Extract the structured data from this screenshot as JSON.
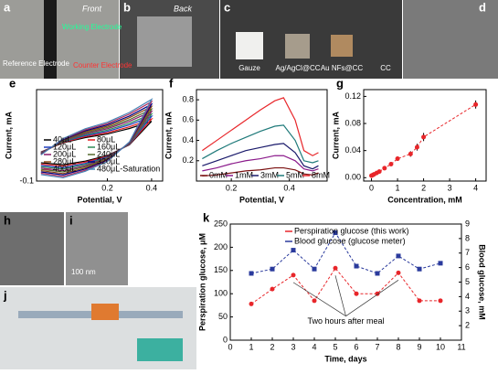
{
  "photos": [
    {
      "label": "a",
      "texts": [
        "Front",
        "Working Electrode",
        "Reference Electrode",
        "Counter Electrode"
      ]
    },
    {
      "label": "b",
      "texts": [
        "Back"
      ]
    },
    {
      "label": "c",
      "texts": [
        "Gauze",
        "Ag/AgCl@CC",
        "Au NFs@CC",
        "CC"
      ]
    },
    {
      "label": "d",
      "texts": []
    },
    {
      "label": "h",
      "texts": []
    },
    {
      "label": "i",
      "texts": [
        "100 nm"
      ]
    },
    {
      "label": "j",
      "texts": []
    }
  ],
  "chart_data": [
    {
      "type": "line",
      "label": "e",
      "xlabel": "Potential, V",
      "ylabel": "Current, mA",
      "x": [
        -0.1,
        0.0,
        0.1,
        0.2,
        0.3,
        0.4,
        0.3,
        0.2,
        0.1,
        0.0,
        -0.1
      ],
      "xlim": [
        -0.12,
        0.45
      ],
      "xticks": [
        0.2,
        0.4
      ],
      "ylim": [
        -0.1,
        0.18
      ],
      "yticks": [
        -0.1
      ],
      "legend": "lower-right",
      "series": [
        {
          "name": "40μL",
          "color": "#000000",
          "values": [
            -0.011,
            0.017,
            0.033,
            0.044,
            0.061,
            0.083,
            0.011,
            -0.022,
            -0.039,
            -0.05,
            -0.044
          ]
        },
        {
          "name": "80μL",
          "color": "#e41a1c",
          "values": [
            -0.012,
            0.018,
            0.036,
            0.048,
            0.066,
            0.09,
            0.012,
            -0.024,
            -0.042,
            -0.054,
            -0.048
          ]
        },
        {
          "name": "120μL",
          "color": "#1f3fbf",
          "values": [
            -0.013,
            0.02,
            0.039,
            0.052,
            0.072,
            0.098,
            0.013,
            -0.026,
            -0.046,
            -0.059,
            -0.052
          ]
        },
        {
          "name": "160μL",
          "color": "#2e8b57",
          "values": [
            -0.014,
            0.021,
            0.042,
            0.056,
            0.077,
            0.105,
            0.014,
            -0.028,
            -0.049,
            -0.063,
            -0.056
          ]
        },
        {
          "name": "200μL",
          "color": "#8b1a6b",
          "values": [
            -0.015,
            0.023,
            0.045,
            0.06,
            0.083,
            0.113,
            0.015,
            -0.03,
            -0.053,
            -0.068,
            -0.06
          ]
        },
        {
          "name": "240μL",
          "color": "#556b2f",
          "values": [
            -0.016,
            0.024,
            0.048,
            0.064,
            0.088,
            0.12,
            0.016,
            -0.032,
            -0.056,
            -0.072,
            -0.064
          ]
        },
        {
          "name": "280μL",
          "color": "#8b4513",
          "values": [
            -0.017,
            0.026,
            0.051,
            0.068,
            0.094,
            0.128,
            0.017,
            -0.034,
            -0.06,
            -0.077,
            -0.068
          ]
        },
        {
          "name": "320μL",
          "color": "#000080",
          "values": [
            -0.018,
            0.027,
            0.054,
            0.072,
            0.099,
            0.135,
            0.018,
            -0.036,
            -0.063,
            -0.081,
            -0.072
          ]
        },
        {
          "name": "400μL",
          "color": "#b03060",
          "values": [
            -0.019,
            0.029,
            0.057,
            0.076,
            0.105,
            0.143,
            0.019,
            -0.038,
            -0.067,
            -0.086,
            -0.076
          ]
        },
        {
          "name": "480μL-Saturation",
          "color": "#4682b4",
          "values": [
            -0.02,
            0.03,
            0.06,
            0.08,
            0.11,
            0.15,
            0.02,
            -0.04,
            -0.07,
            -0.09,
            -0.08
          ]
        }
      ]
    },
    {
      "type": "line",
      "label": "f",
      "xlabel": "Potential, V",
      "ylabel": "Current, mA",
      "x": [
        0.1,
        0.15,
        0.2,
        0.25,
        0.3,
        0.35,
        0.38,
        0.42,
        0.45,
        0.48,
        0.5
      ],
      "xlim": [
        0.08,
        0.53
      ],
      "xticks": [
        0.2,
        0.4
      ],
      "ylim": [
        0,
        0.9
      ],
      "yticks": [
        0.2,
        0.4,
        0.6,
        0.8
      ],
      "legend": "bottom",
      "series": [
        {
          "name": "0mM",
          "color": "#7a1010",
          "values": [
            0.05,
            0.06,
            0.08,
            0.1,
            0.11,
            0.13,
            0.13,
            0.11,
            0.07,
            0.06,
            0.08
          ]
        },
        {
          "name": "1mM",
          "color": "#8b1a8b",
          "values": [
            0.1,
            0.13,
            0.17,
            0.2,
            0.22,
            0.25,
            0.25,
            0.2,
            0.12,
            0.1,
            0.12
          ]
        },
        {
          "name": "3mM",
          "color": "#1a1a6b",
          "values": [
            0.15,
            0.2,
            0.25,
            0.3,
            0.33,
            0.36,
            0.37,
            0.28,
            0.15,
            0.12,
            0.15
          ]
        },
        {
          "name": "5mM",
          "color": "#1f7a7a",
          "values": [
            0.22,
            0.3,
            0.37,
            0.43,
            0.49,
            0.54,
            0.55,
            0.4,
            0.2,
            0.18,
            0.2
          ]
        },
        {
          "name": "8mM",
          "color": "#e8262a",
          "values": [
            0.3,
            0.4,
            0.5,
            0.6,
            0.7,
            0.79,
            0.82,
            0.6,
            0.3,
            0.25,
            0.28
          ]
        }
      ]
    },
    {
      "type": "scatter",
      "label": "g",
      "xlabel": "Concentration, mM",
      "ylabel": "Current, mA",
      "x": [
        0,
        0.05,
        0.1,
        0.2,
        0.3,
        0.5,
        0.75,
        1,
        1.5,
        1.75,
        2,
        4
      ],
      "xlim": [
        -0.3,
        4.4
      ],
      "xticks": [
        0,
        1,
        2,
        3,
        4
      ],
      "ylim": [
        -0.005,
        0.13
      ],
      "yticks": [
        {
          "value": 0,
          "label": "0.00"
        },
        0.04,
        0.08,
        0.12
      ],
      "series": [
        {
          "color": "#e8262a",
          "values": [
            0.003,
            0.004,
            0.005,
            0.007,
            0.009,
            0.014,
            0.02,
            0.028,
            0.035,
            0.045,
            0.06,
            0.108
          ],
          "errors": [
            0.001,
            0.001,
            0.001,
            0.001,
            0.002,
            0.002,
            0.003,
            0.003,
            0.004,
            0.005,
            0.006,
            0.006
          ]
        }
      ]
    },
    {
      "type": "line",
      "label": "k",
      "xlabel": "Time, days",
      "ylabel": "Perspiration glucose, μM",
      "y2label": "Blood glucose, mM",
      "x": [
        1,
        2,
        3,
        4,
        5,
        6,
        7,
        8,
        9,
        10
      ],
      "xlim": [
        0,
        11
      ],
      "xticks": [
        0,
        1,
        2,
        3,
        4,
        5,
        6,
        7,
        8,
        9,
        10,
        11
      ],
      "ylim": [
        0,
        250
      ],
      "yticks": [
        0,
        50,
        100,
        150,
        200,
        250
      ],
      "y2lim": [
        1,
        9
      ],
      "y2ticks": [
        2,
        3,
        4,
        5,
        6,
        7,
        8,
        9
      ],
      "legend": "top",
      "annotation": "Two hours after meal",
      "series": [
        {
          "name": "Perspiration glucose (this work)",
          "color": "#e8262a",
          "marker": "circle",
          "values": [
            78,
            110,
            140,
            85,
            155,
            100,
            100,
            145,
            85,
            85
          ]
        },
        {
          "name": "Blood glucose (glucose meter)",
          "color": "#2a3a9c",
          "marker": "square",
          "axis": "y2",
          "values": [
            5.6,
            5.9,
            7.2,
            5.9,
            8.4,
            6.1,
            5.6,
            6.8,
            5.9,
            6.3
          ]
        }
      ]
    }
  ]
}
